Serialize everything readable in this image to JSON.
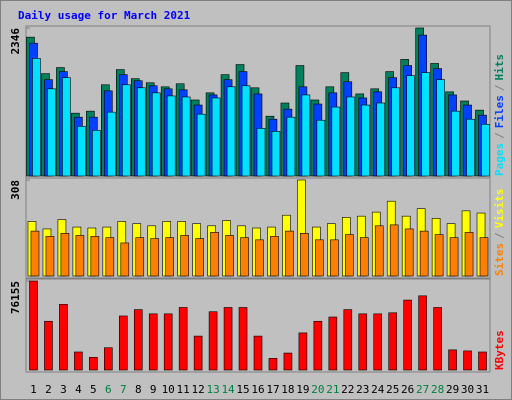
{
  "chart_data": [
    {
      "type": "bar",
      "title": "Daily usage for March 2021",
      "title_color": "#0000ff",
      "ylim": [
        0,
        2346
      ],
      "yticks": [
        2346
      ],
      "legend_separator": "/",
      "legend_separator_color": "#808080",
      "series": [
        {
          "name": "Pages",
          "color": "#00e0ff",
          "values": [
            1864,
            1382,
            1559,
            787,
            723,
            1012,
            1446,
            1398,
            1318,
            1269,
            1253,
            980,
            1237,
            1414,
            1430,
            755,
            707,
            932,
            1285,
            884,
            1093,
            1253,
            1125,
            1157,
            1398,
            1591,
            1639,
            1527,
            1028,
            900,
            819
          ]
        },
        {
          "name": "Files",
          "color": "#0040ff",
          "values": [
            2105,
            1527,
            1655,
            932,
            932,
            1350,
            1607,
            1510,
            1430,
            1382,
            1366,
            1125,
            1285,
            1527,
            1655,
            1301,
            900,
            1060,
            1414,
            1141,
            1318,
            1494,
            1237,
            1334,
            1559,
            1751,
            2233,
            1703,
            1285,
            1125,
            964
          ]
        },
        {
          "name": "Hits",
          "color": "#00805c",
          "values": [
            2201,
            1623,
            1719,
            996,
            1028,
            1446,
            1687,
            1543,
            1478,
            1414,
            1462,
            1205,
            1318,
            1607,
            1767,
            1398,
            948,
            1157,
            1751,
            1205,
            1414,
            1639,
            1301,
            1382,
            1655,
            1848,
            2346,
            1784,
            1334,
            1189,
            1044
          ]
        }
      ]
    },
    {
      "type": "bar",
      "ylim": [
        0,
        308
      ],
      "yticks": [
        308
      ],
      "legend_separator": "/",
      "legend_separator_color": "#808080",
      "series": [
        {
          "name": "Sites",
          "color": "#ff8000",
          "values": [
            144,
            127,
            137,
            130,
            127,
            123,
            106,
            123,
            120,
            123,
            130,
            120,
            140,
            130,
            123,
            116,
            127,
            144,
            137,
            116,
            116,
            133,
            123,
            161,
            164,
            151,
            144,
            133,
            123,
            140,
            123
          ]
        },
        {
          "name": "Visits",
          "color": "#ffff00",
          "values": [
            175,
            151,
            181,
            157,
            154,
            157,
            175,
            168,
            161,
            175,
            175,
            168,
            161,
            178,
            161,
            154,
            157,
            195,
            308,
            157,
            168,
            188,
            192,
            205,
            240,
            192,
            216,
            185,
            168,
            209,
            202
          ]
        }
      ]
    },
    {
      "type": "bar",
      "ylim": [
        0,
        76155
      ],
      "yticks": [
        76155
      ],
      "categories": [
        "1",
        "2",
        "3",
        "4",
        "5",
        "6",
        "7",
        "8",
        "9",
        "10",
        "11",
        "12",
        "13",
        "14",
        "15",
        "16",
        "17",
        "18",
        "19",
        "20",
        "21",
        "22",
        "23",
        "24",
        "25",
        "26",
        "27",
        "28",
        "29",
        "30",
        "31"
      ],
      "category_label_colors": [
        "#000000",
        "#000000",
        "#000000",
        "#000000",
        "#000000",
        "#008040",
        "#008040",
        "#000000",
        "#000000",
        "#000000",
        "#000000",
        "#000000",
        "#008040",
        "#008040",
        "#000000",
        "#000000",
        "#000000",
        "#000000",
        "#000000",
        "#008040",
        "#008040",
        "#000000",
        "#000000",
        "#000000",
        "#000000",
        "#000000",
        "#008040",
        "#008040",
        "#000000",
        "#000000",
        "#000000"
      ],
      "series": [
        {
          "name": "KBytes",
          "color": "#ff0000",
          "values": [
            76155,
            41704,
            56209,
            15412,
            10879,
            19039,
            46237,
            51677,
            48050,
            48050,
            53490,
            29011,
            49864,
            53490,
            53490,
            29011,
            9973,
            14506,
            31731,
            41704,
            45330,
            51677,
            48050,
            48050,
            48957,
            59836,
            63462,
            53490,
            17225,
            16319,
            15412
          ]
        }
      ]
    }
  ]
}
